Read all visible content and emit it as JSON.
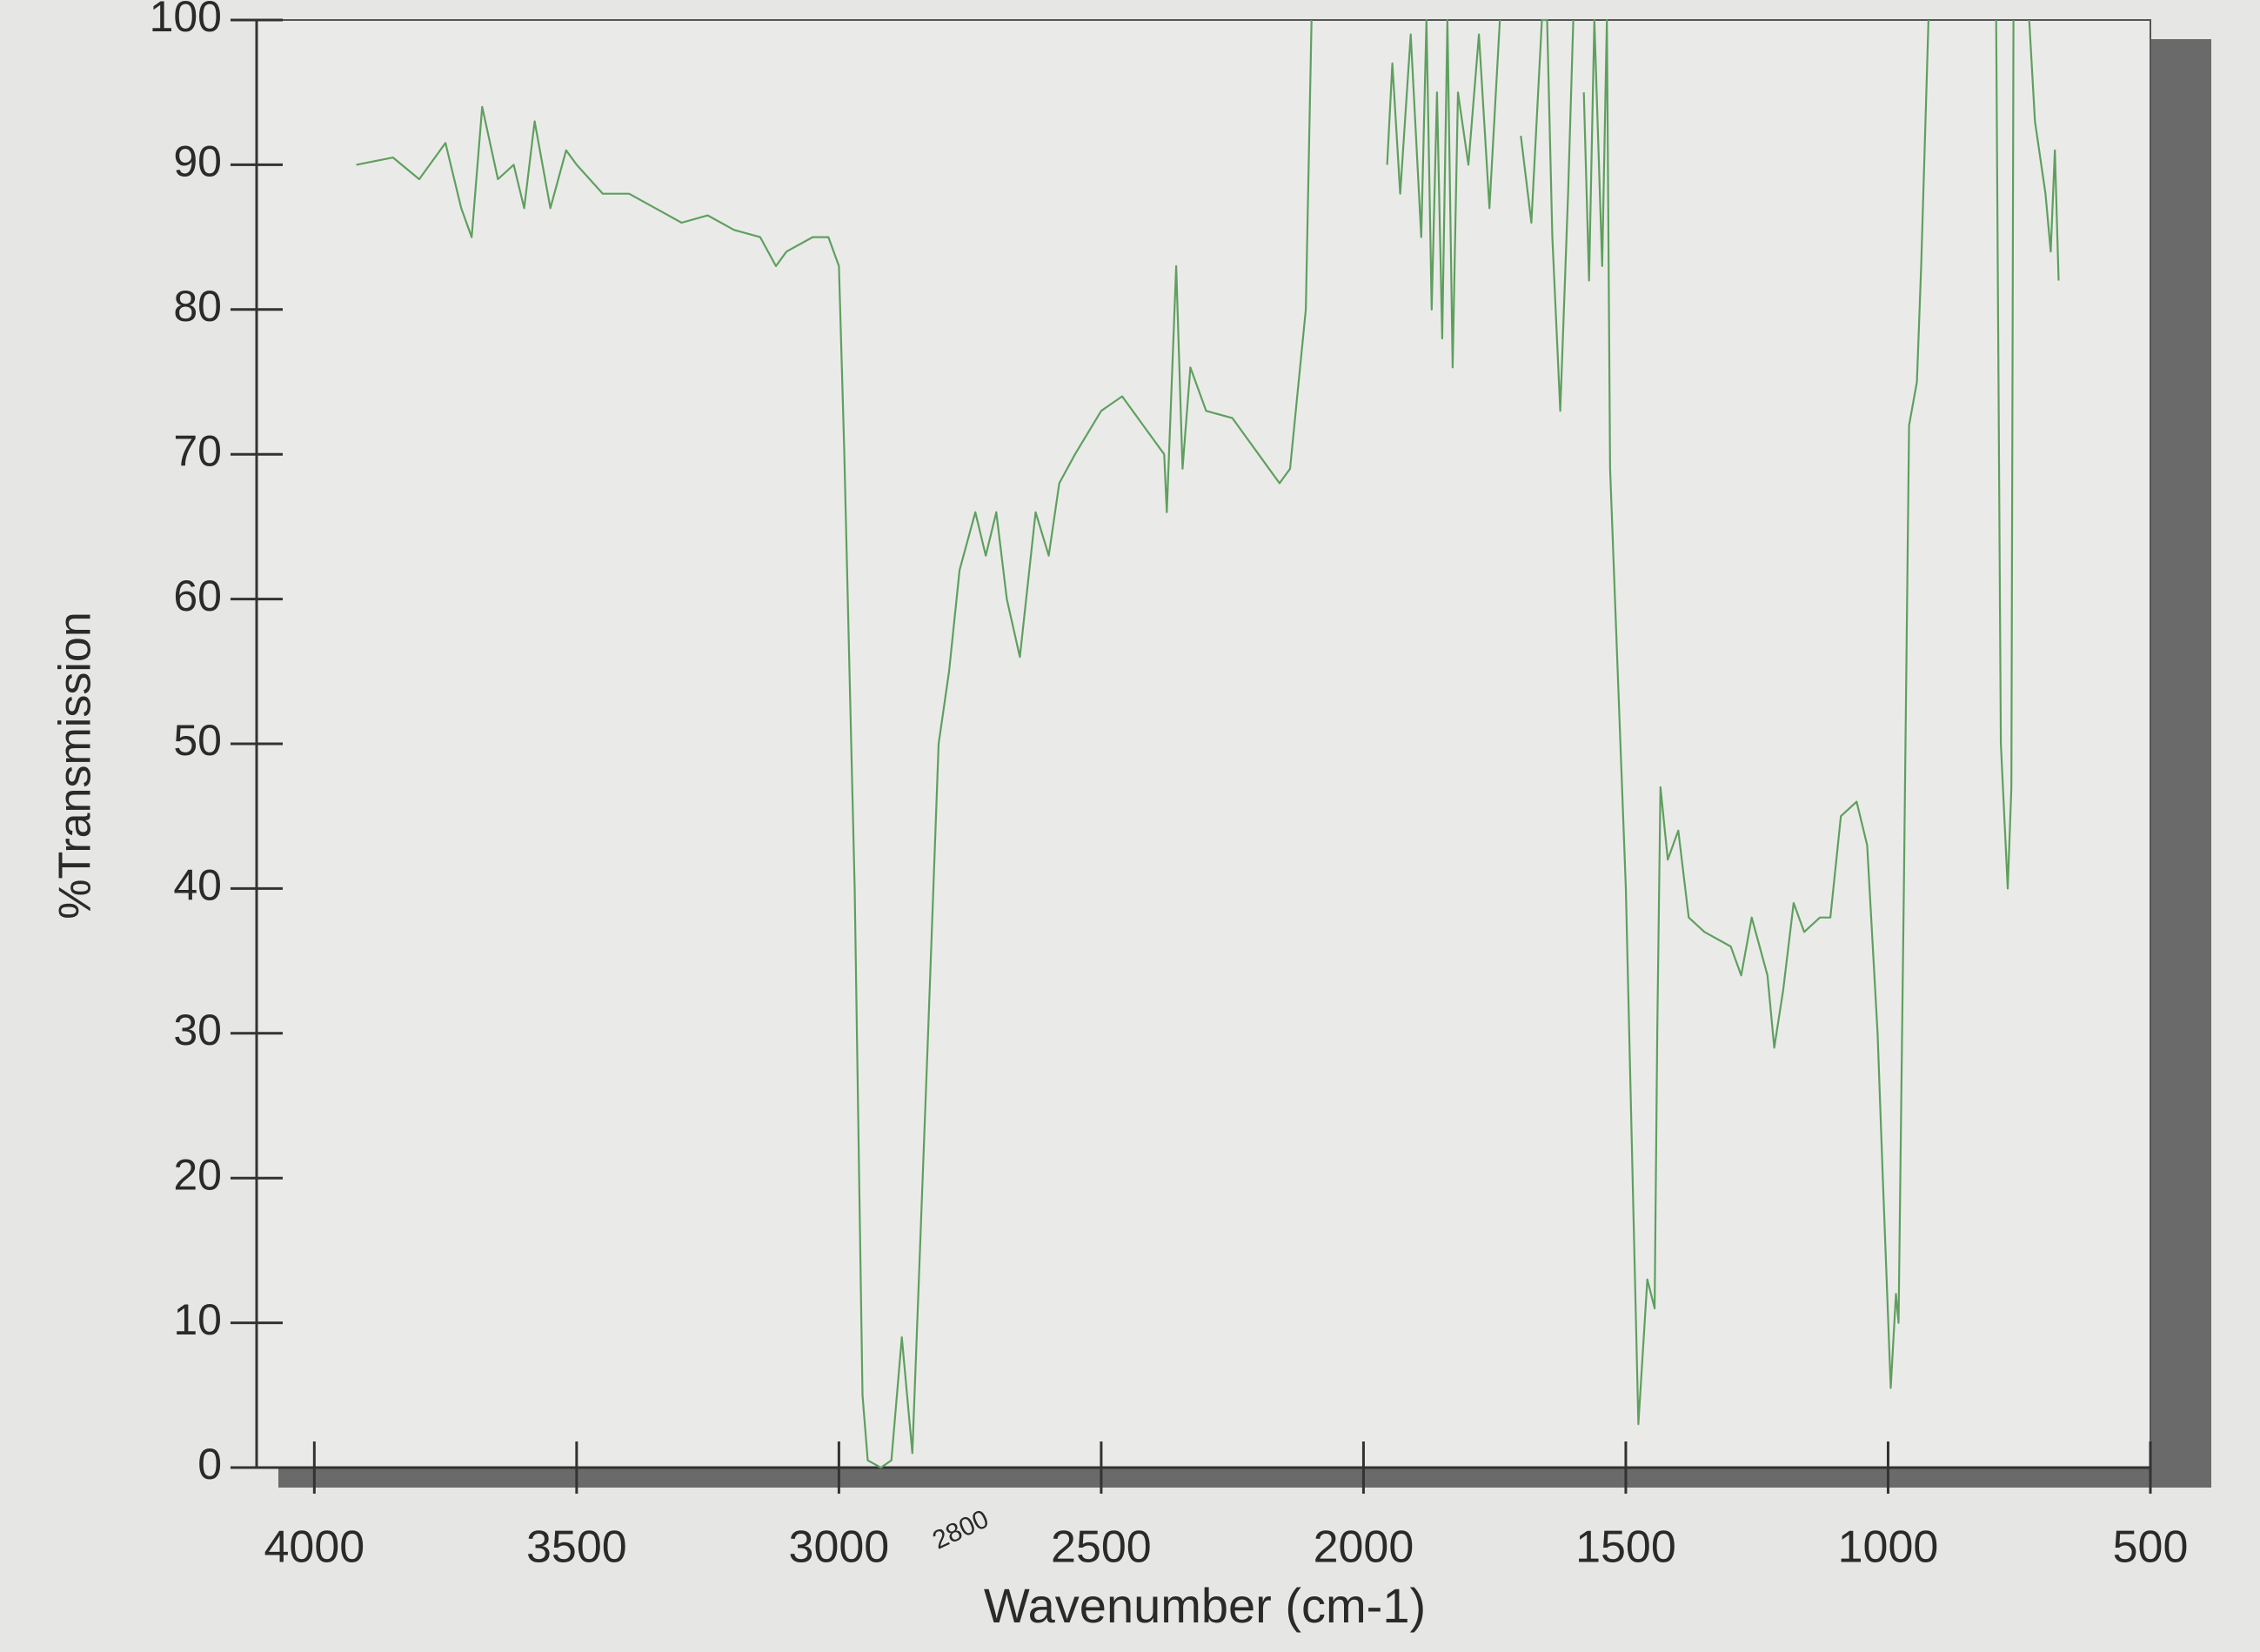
{
  "chart_data": {
    "type": "line",
    "xlabel": "Wavenumber (cm-1)",
    "ylabel": "%Transmission",
    "annotations": [
      "2800"
    ],
    "color": "#5f9f5f",
    "xlim": [
      4110,
      500
    ],
    "ylim": [
      0,
      100
    ],
    "xticks": [
      4000,
      3500,
      3000,
      2500,
      2000,
      1500,
      1000,
      500
    ],
    "yticks": [
      0,
      10,
      20,
      30,
      40,
      50,
      60,
      70,
      80,
      90,
      100
    ],
    "x": [
      3920,
      3850,
      3800,
      3750,
      3720,
      3700,
      3680,
      3650,
      3620,
      3600,
      3580,
      3550,
      3520,
      3500,
      3450,
      3400,
      3350,
      3300,
      3250,
      3200,
      3150,
      3120,
      3100,
      3050,
      3020,
      3000,
      2990,
      2970,
      2955,
      2945,
      2920,
      2900,
      2880,
      2860,
      2830,
      2810,
      2790,
      2770,
      2740,
      2720,
      2700,
      2680,
      2655,
      2625,
      2600,
      2580,
      2550,
      2500,
      2460,
      2420,
      2380,
      2375,
      2357,
      2345,
      2330,
      2300,
      2250,
      2200,
      2160,
      2140,
      2110,
      2099,
      2000,
      1955,
      1945,
      1930,
      1910,
      1890,
      1880,
      1870,
      1860,
      1850,
      1840,
      1830,
      1820,
      1800,
      1780,
      1760,
      1740,
      1720,
      1700,
      1680,
      1660,
      1650,
      1640,
      1625,
      1610,
      1600,
      1590,
      1580,
      1570,
      1560,
      1545,
      1536,
      1530,
      1500,
      1476,
      1459,
      1445,
      1440,
      1434,
      1420,
      1400,
      1380,
      1350,
      1300,
      1280,
      1260,
      1230,
      1217,
      1200,
      1180,
      1160,
      1130,
      1110,
      1090,
      1060,
      1040,
      1020,
      1010,
      995,
      985,
      980,
      970,
      960,
      945,
      937,
      923,
      850,
      794,
      785,
      772,
      765,
      761,
      745,
      731,
      720,
      700,
      690,
      682,
      675
    ],
    "values": [
      90,
      90.5,
      89,
      91.5,
      87,
      85,
      94,
      89,
      90,
      87,
      93,
      87,
      91,
      90,
      88,
      88,
      87,
      86,
      86.5,
      85.5,
      85,
      83,
      84,
      85,
      85,
      83,
      70.5,
      40,
      5,
      0.5,
      0,
      0.5,
      9,
      1,
      30,
      50,
      55,
      62,
      66,
      63,
      66,
      60,
      56,
      66,
      63,
      68,
      70,
      73,
      74,
      72,
      70,
      66,
      83,
      69,
      76,
      73,
      72.5,
      70,
      68,
      69,
      80,
      100,
      null,
      90,
      97,
      88,
      99,
      85,
      100,
      80,
      95,
      78,
      100,
      76,
      95,
      90,
      99,
      87,
      100,
      null,
      92,
      86,
      100,
      100,
      85,
      73,
      88,
      100,
      null,
      95,
      82,
      100,
      83,
      100,
      69,
      40,
      3,
      13,
      11,
      30,
      47,
      42,
      44,
      38,
      37,
      36,
      34,
      38,
      34,
      29,
      33,
      39,
      37,
      38,
      38,
      45,
      46,
      43,
      30,
      20,
      5.5,
      12,
      10,
      40,
      72,
      75,
      83,
      100,
      null,
      100,
      50,
      40,
      47,
      100,
      null,
      100,
      93,
      88,
      84,
      91,
      82
    ]
  }
}
